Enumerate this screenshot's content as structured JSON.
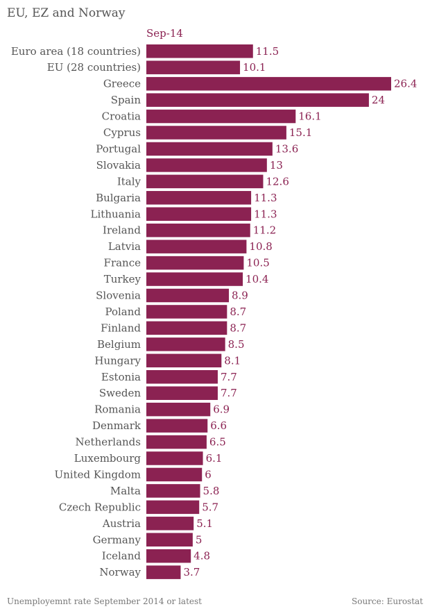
{
  "chart_data": {
    "type": "bar",
    "orientation": "horizontal",
    "title": "EU, EZ and Norway",
    "series": [
      {
        "name": "Sep-14",
        "values": [
          11.5,
          10.1,
          26.4,
          24,
          16.1,
          15.1,
          13.6,
          13,
          12.6,
          11.3,
          11.3,
          11.2,
          10.8,
          10.5,
          10.4,
          8.9,
          8.7,
          8.7,
          8.5,
          8.1,
          7.7,
          7.7,
          6.9,
          6.6,
          6.5,
          6.1,
          6,
          5.8,
          5.7,
          5.1,
          5,
          4.8,
          3.7
        ]
      }
    ],
    "categories": [
      "Euro area (18 countries)",
      "EU (28 countries)",
      "Greece",
      "Spain",
      "Croatia",
      "Cyprus",
      "Portugal",
      "Slovakia",
      "Italy",
      "Bulgaria",
      "Lithuania",
      "Ireland",
      "Latvia",
      "France",
      "Turkey",
      "Slovenia",
      "Poland",
      "Finland",
      "Belgium",
      "Hungary",
      "Estonia",
      "Sweden",
      "Romania",
      "Denmark",
      "Netherlands",
      "Luxembourg",
      "United Kingdom",
      "Malta",
      "Czech Republic",
      "Austria",
      "Germany",
      "Iceland",
      "Norway"
    ],
    "xlim": [
      0,
      26.4
    ],
    "grid": false,
    "legend_placement": "top-left"
  },
  "colors": {
    "bar": "#8b2252",
    "value_label": "#8b2252",
    "category_label": "#555555",
    "text_muted": "#777777"
  },
  "footer": {
    "note": "Unemployemnt rate September 2014 or latest",
    "source": "Source: Eurostat"
  }
}
